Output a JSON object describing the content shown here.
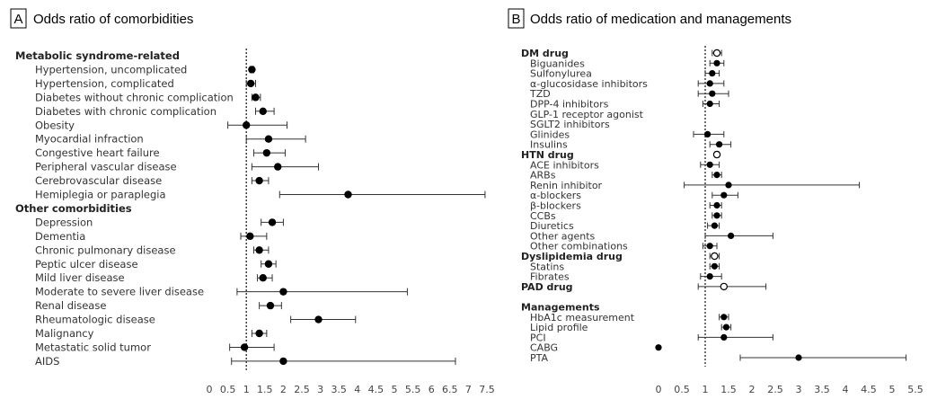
{
  "chart_data": [
    {
      "type": "forest",
      "panel_letter": "A",
      "title": "Odds ratio of comorbidities",
      "reference_line": 1,
      "xlim": [
        0,
        7.5
      ],
      "x_ticks": [
        "0",
        "0.5",
        "1",
        "1.5",
        "2",
        "2.5",
        "3",
        "3.5",
        "4",
        "4.5",
        "5",
        "5.5",
        "6",
        "6.5",
        "7",
        "7.5"
      ],
      "rows": [
        {
          "label": "Metabolic syndrome-related",
          "header": true
        },
        {
          "label": "Hypertension, uncomplicated",
          "or": 1.15,
          "lo": 1.1,
          "hi": 1.2,
          "marker": "filled"
        },
        {
          "label": "Hypertension, complicated",
          "or": 1.12,
          "lo": 1.0,
          "hi": 1.25,
          "marker": "filled"
        },
        {
          "label": "Diabetes without chronic complication",
          "or": 1.25,
          "lo": 1.15,
          "hi": 1.38,
          "marker": "filled"
        },
        {
          "label": "Diabetes with chronic complication",
          "or": 1.45,
          "lo": 1.25,
          "hi": 1.75,
          "marker": "filled"
        },
        {
          "label": "Obesity",
          "or": 1.0,
          "lo": 0.5,
          "hi": 2.1,
          "marker": "filled"
        },
        {
          "label": "Myocardial infraction",
          "or": 1.6,
          "lo": 1.0,
          "hi": 2.6,
          "marker": "filled"
        },
        {
          "label": "Congestive heart failure",
          "or": 1.55,
          "lo": 1.2,
          "hi": 2.05,
          "marker": "filled"
        },
        {
          "label": "Peripheral vascular disease",
          "or": 1.85,
          "lo": 1.15,
          "hi": 2.95,
          "marker": "filled"
        },
        {
          "label": "Cerebrovascular disease",
          "or": 1.35,
          "lo": 1.15,
          "hi": 1.6,
          "marker": "filled"
        },
        {
          "label": "Hemiplegia or paraplegia",
          "or": 3.75,
          "lo": 1.9,
          "hi": 7.45,
          "marker": "filled"
        },
        {
          "label": "Other comorbidities",
          "header": true
        },
        {
          "label": "Depression",
          "or": 1.7,
          "lo": 1.4,
          "hi": 2.0,
          "marker": "filled"
        },
        {
          "label": "Dementia",
          "or": 1.1,
          "lo": 0.85,
          "hi": 1.55,
          "marker": "filled"
        },
        {
          "label": "Chronic pulmonary disease",
          "or": 1.35,
          "lo": 1.2,
          "hi": 1.6,
          "marker": "filled"
        },
        {
          "label": "Peptic ulcer disease",
          "or": 1.6,
          "lo": 1.4,
          "hi": 1.8,
          "marker": "filled"
        },
        {
          "label": "Mild liver disease",
          "or": 1.45,
          "lo": 1.3,
          "hi": 1.7,
          "marker": "filled"
        },
        {
          "label": "Moderate to severe liver disease",
          "or": 2.0,
          "lo": 0.75,
          "hi": 5.35,
          "marker": "filled"
        },
        {
          "label": "Renal disease",
          "or": 1.65,
          "lo": 1.35,
          "hi": 1.95,
          "marker": "filled"
        },
        {
          "label": "Rheumatologic disease",
          "or": 2.95,
          "lo": 2.2,
          "hi": 3.95,
          "marker": "filled"
        },
        {
          "label": "Malignancy",
          "or": 1.35,
          "lo": 1.15,
          "hi": 1.55,
          "marker": "filled"
        },
        {
          "label": "Metastatic solid tumor",
          "or": 0.95,
          "lo": 0.55,
          "hi": 1.75,
          "marker": "filled"
        },
        {
          "label": "AIDS",
          "or": 2.0,
          "lo": 0.6,
          "hi": 6.65,
          "marker": "filled"
        }
      ]
    },
    {
      "type": "forest",
      "panel_letter": "B",
      "title": "Odds ratio of medication and managements",
      "reference_line": 1,
      "xlim": [
        0,
        5.5
      ],
      "x_ticks": [
        "0",
        "0.5",
        "1",
        "1.5",
        "2",
        "2.5",
        "3",
        "3.5",
        "4",
        "4.5",
        "5",
        "5.5"
      ],
      "rows": [
        {
          "label": "DM drug",
          "header": true,
          "or": 1.25,
          "lo": 1.15,
          "hi": 1.35,
          "marker": "open"
        },
        {
          "label": "Biguanides",
          "or": 1.25,
          "lo": 1.1,
          "hi": 1.4,
          "marker": "filled"
        },
        {
          "label": "Sulfonylurea",
          "or": 1.15,
          "lo": 1.0,
          "hi": 1.3,
          "marker": "filled"
        },
        {
          "label": "α-glucosidase inhibitors",
          "or": 1.1,
          "lo": 0.85,
          "hi": 1.4,
          "marker": "filled"
        },
        {
          "label": "TZD",
          "or": 1.15,
          "lo": 0.85,
          "hi": 1.5,
          "marker": "filled"
        },
        {
          "label": "DPP-4 inhibitors",
          "or": 1.1,
          "lo": 0.95,
          "hi": 1.3,
          "marker": "filled"
        },
        {
          "label": "GLP-1 receptor agonist"
        },
        {
          "label": "SGLT2 inhibitors"
        },
        {
          "label": "Glinides",
          "or": 1.05,
          "lo": 0.75,
          "hi": 1.4,
          "marker": "filled"
        },
        {
          "label": "Insulins",
          "or": 1.3,
          "lo": 1.1,
          "hi": 1.55,
          "marker": "filled"
        },
        {
          "label": "HTN drug",
          "header": true,
          "or": 1.25,
          "lo": 1.2,
          "hi": 1.3,
          "marker": "open"
        },
        {
          "label": "ACE inhibitors",
          "or": 1.1,
          "lo": 0.9,
          "hi": 1.3,
          "marker": "filled"
        },
        {
          "label": "ARBs",
          "or": 1.25,
          "lo": 1.15,
          "hi": 1.35,
          "marker": "filled"
        },
        {
          "label": "Renin inhibitor",
          "or": 1.5,
          "lo": 0.55,
          "hi": 4.3,
          "marker": "filled"
        },
        {
          "label": "α-blockers",
          "or": 1.4,
          "lo": 1.15,
          "hi": 1.7,
          "marker": "filled"
        },
        {
          "label": "β-blockers",
          "or": 1.25,
          "lo": 1.1,
          "hi": 1.35,
          "marker": "filled"
        },
        {
          "label": "CCBs",
          "or": 1.25,
          "lo": 1.15,
          "hi": 1.35,
          "marker": "filled"
        },
        {
          "label": "Diuretics",
          "or": 1.2,
          "lo": 1.05,
          "hi": 1.3,
          "marker": "filled"
        },
        {
          "label": "Other agents",
          "or": 1.55,
          "lo": 1.0,
          "hi": 2.45,
          "marker": "filled"
        },
        {
          "label": "Other combinations",
          "or": 1.1,
          "lo": 0.95,
          "hi": 1.25,
          "marker": "filled"
        },
        {
          "label": "Dyslipidemia drug",
          "header": true,
          "or": 1.2,
          "lo": 1.1,
          "hi": 1.3,
          "marker": "open"
        },
        {
          "label": "Statins",
          "or": 1.2,
          "lo": 1.1,
          "hi": 1.3,
          "marker": "filled"
        },
        {
          "label": "Fibrates",
          "or": 1.1,
          "lo": 0.9,
          "hi": 1.35,
          "marker": "filled"
        },
        {
          "label": "PAD drug",
          "header": true,
          "or": 1.4,
          "lo": 0.85,
          "hi": 2.3,
          "marker": "open"
        },
        {
          "label": "",
          "spacer": true
        },
        {
          "label": "Managements",
          "header": true
        },
        {
          "label": "HbA1c measurement",
          "or": 1.4,
          "lo": 1.3,
          "hi": 1.5,
          "marker": "filled"
        },
        {
          "label": "Lipid profile",
          "or": 1.45,
          "lo": 1.35,
          "hi": 1.55,
          "marker": "filled"
        },
        {
          "label": "PCI",
          "or": 1.4,
          "lo": 0.85,
          "hi": 2.45,
          "marker": "filled"
        },
        {
          "label": "CABG",
          "or": 0.0,
          "marker": "filled"
        },
        {
          "label": "PTA",
          "or": 3.0,
          "lo": 1.75,
          "hi": 5.3,
          "marker": "filled"
        }
      ]
    }
  ]
}
